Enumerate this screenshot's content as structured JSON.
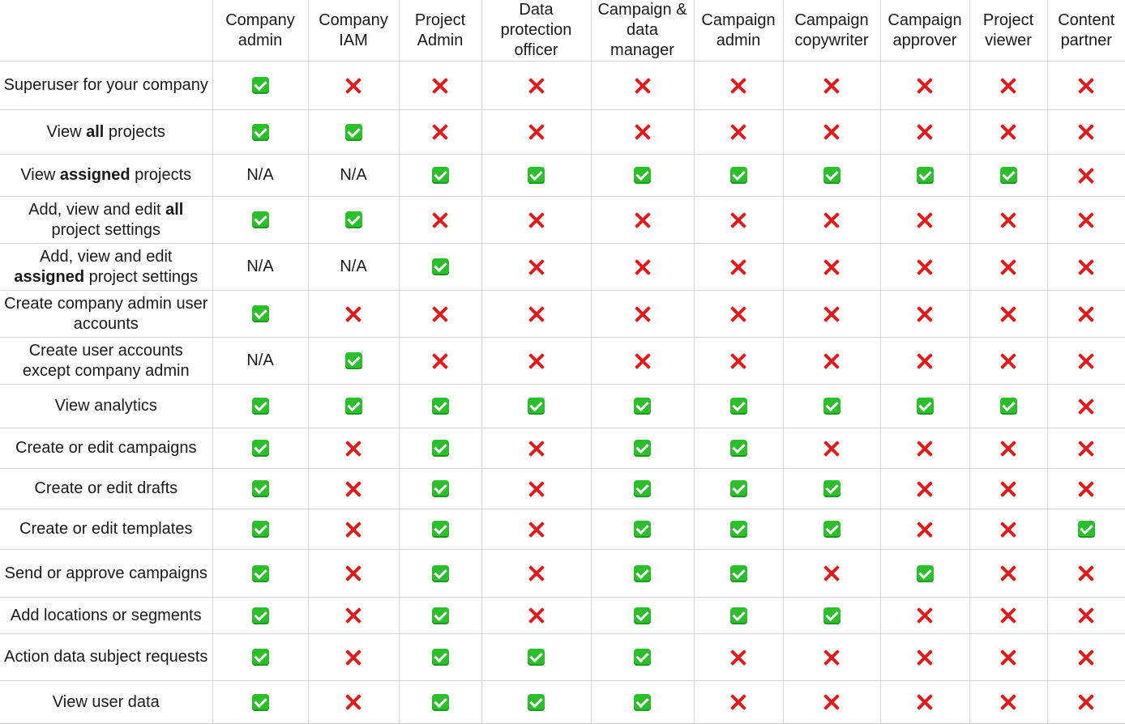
{
  "header": {
    "roles": [
      "Company admin",
      "Company IAM",
      "Project Admin",
      "Data protection officer",
      "Campaign & data manager",
      "Campaign admin",
      "Campaign copywriter",
      "Campaign approver",
      "Project viewer",
      "Content partner"
    ]
  },
  "legend": {
    "yes": "check-mark",
    "no": "cross-mark",
    "not_applicable": "N/A"
  },
  "colors": {
    "check_green": "#2cbf2c",
    "cross_red": "#e01b1b",
    "grid_line": "#d6d6d6"
  },
  "rows": [
    {
      "label": {
        "pre": "Superuser for your company",
        "bold": "",
        "post": ""
      },
      "values": [
        "yes",
        "no",
        "no",
        "no",
        "no",
        "no",
        "no",
        "no",
        "no",
        "no"
      ]
    },
    {
      "label": {
        "pre": "View ",
        "bold": "all",
        "post": " projects"
      },
      "values": [
        "yes",
        "yes",
        "no",
        "no",
        "no",
        "no",
        "no",
        "no",
        "no",
        "no"
      ]
    },
    {
      "label": {
        "pre": "View ",
        "bold": "assigned",
        "post": " projects"
      },
      "values": [
        "N/A",
        "N/A",
        "yes",
        "yes",
        "yes",
        "yes",
        "yes",
        "yes",
        "yes",
        "no"
      ]
    },
    {
      "label": {
        "pre": "Add, view and edit ",
        "bold": "all",
        "post": " project settings"
      },
      "values": [
        "yes",
        "yes",
        "no",
        "no",
        "no",
        "no",
        "no",
        "no",
        "no",
        "no"
      ]
    },
    {
      "label": {
        "pre": "Add, view and edit ",
        "bold": "assigned",
        "post": " project settings"
      },
      "values": [
        "N/A",
        "N/A",
        "yes",
        "no",
        "no",
        "no",
        "no",
        "no",
        "no",
        "no"
      ]
    },
    {
      "label": {
        "pre": "Create company admin user accounts",
        "bold": "",
        "post": ""
      },
      "values": [
        "yes",
        "no",
        "no",
        "no",
        "no",
        "no",
        "no",
        "no",
        "no",
        "no"
      ]
    },
    {
      "label": {
        "pre": "Create user accounts except company admin",
        "bold": "",
        "post": ""
      },
      "values": [
        "N/A",
        "yes",
        "no",
        "no",
        "no",
        "no",
        "no",
        "no",
        "no",
        "no"
      ]
    },
    {
      "label": {
        "pre": "View analytics",
        "bold": "",
        "post": ""
      },
      "values": [
        "yes",
        "yes",
        "yes",
        "yes",
        "yes",
        "yes",
        "yes",
        "yes",
        "yes",
        "no"
      ]
    },
    {
      "label": {
        "pre": "Create or edit campaigns",
        "bold": "",
        "post": ""
      },
      "values": [
        "yes",
        "no",
        "yes",
        "no",
        "yes",
        "yes",
        "no",
        "no",
        "no",
        "no"
      ]
    },
    {
      "label": {
        "pre": "Create or edit drafts",
        "bold": "",
        "post": ""
      },
      "values": [
        "yes",
        "no",
        "yes",
        "no",
        "yes",
        "yes",
        "yes",
        "no",
        "no",
        "no"
      ]
    },
    {
      "label": {
        "pre": "Create or edit templates",
        "bold": "",
        "post": ""
      },
      "values": [
        "yes",
        "no",
        "yes",
        "no",
        "yes",
        "yes",
        "yes",
        "no",
        "no",
        "yes"
      ]
    },
    {
      "label": {
        "pre": "Send or approve campaigns",
        "bold": "",
        "post": ""
      },
      "values": [
        "yes",
        "no",
        "yes",
        "no",
        "yes",
        "yes",
        "no",
        "yes",
        "no",
        "no"
      ]
    },
    {
      "label": {
        "pre": "Add locations or segments",
        "bold": "",
        "post": ""
      },
      "values": [
        "yes",
        "no",
        "yes",
        "no",
        "yes",
        "yes",
        "yes",
        "no",
        "no",
        "no"
      ]
    },
    {
      "label": {
        "pre": "Action data subject requests",
        "bold": "",
        "post": ""
      },
      "values": [
        "yes",
        "no",
        "yes",
        "yes",
        "yes",
        "no",
        "no",
        "no",
        "no",
        "no"
      ]
    },
    {
      "label": {
        "pre": "View user data",
        "bold": "",
        "post": ""
      },
      "values": [
        "yes",
        "no",
        "yes",
        "yes",
        "yes",
        "no",
        "no",
        "no",
        "no",
        "no"
      ]
    }
  ]
}
